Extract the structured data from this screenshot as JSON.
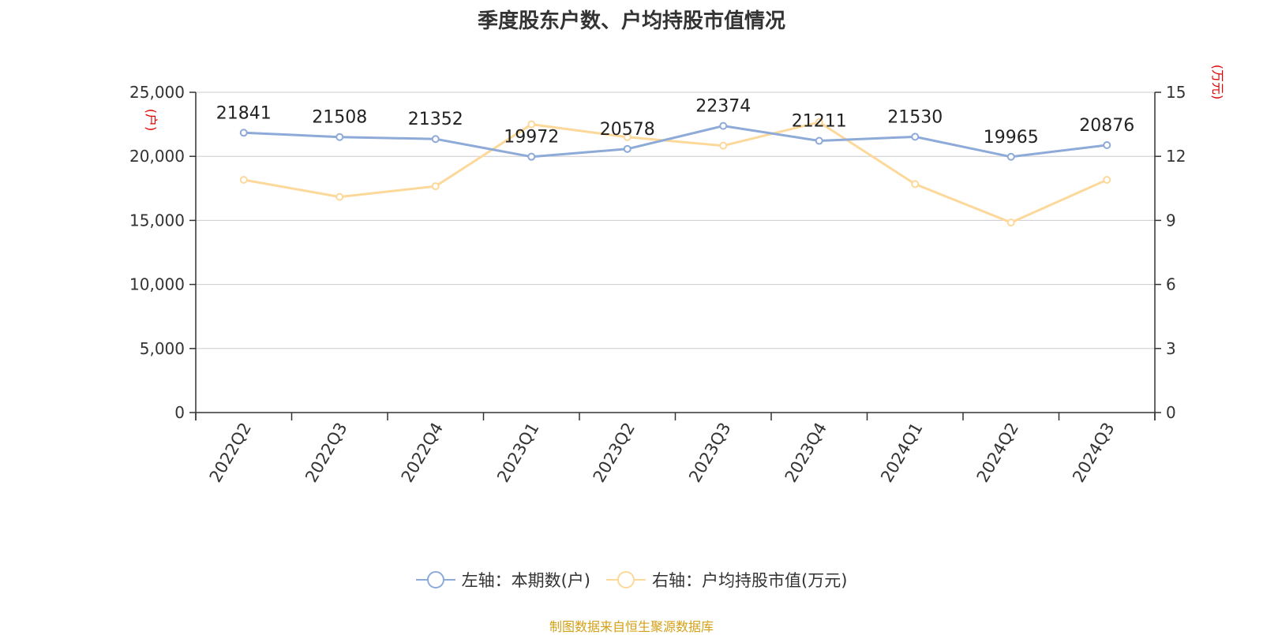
{
  "chart_data": {
    "type": "line",
    "title": "季度股东户数、户均持股市值情况",
    "categories": [
      "2022Q2",
      "2022Q3",
      "2022Q4",
      "2023Q1",
      "2023Q2",
      "2023Q3",
      "2023Q4",
      "2024Q1",
      "2024Q2",
      "2024Q3"
    ],
    "left_axis": {
      "unit": "(户)",
      "ylim": [
        0,
        25000
      ],
      "ticks": [
        "0",
        "5,000",
        "10,000",
        "15,000",
        "20,000",
        "25,000"
      ]
    },
    "right_axis": {
      "unit": "(万元)",
      "ylim": [
        0,
        15
      ],
      "ticks": [
        "0",
        "3",
        "6",
        "9",
        "12",
        "15"
      ]
    },
    "series": [
      {
        "name": "左轴：本期数(户)",
        "axis": "left",
        "color": "#8eaad8",
        "values": [
          21841,
          21508,
          21352,
          19972,
          20578,
          22374,
          21211,
          21530,
          19965,
          20876
        ],
        "labels": [
          "21841",
          "21508",
          "21352",
          "19972",
          "20578",
          "22374",
          "21211",
          "21530",
          "19965",
          "20876"
        ]
      },
      {
        "name": "右轴：户均持股市值(万元)",
        "axis": "right",
        "color": "#fcd99a",
        "values": [
          10.9,
          10.1,
          10.6,
          13.5,
          12.9,
          12.5,
          13.6,
          10.7,
          8.9,
          10.9
        ]
      }
    ],
    "grid": true,
    "legend_position": "bottom"
  },
  "source_note": "制图数据来自恒生聚源数据库"
}
